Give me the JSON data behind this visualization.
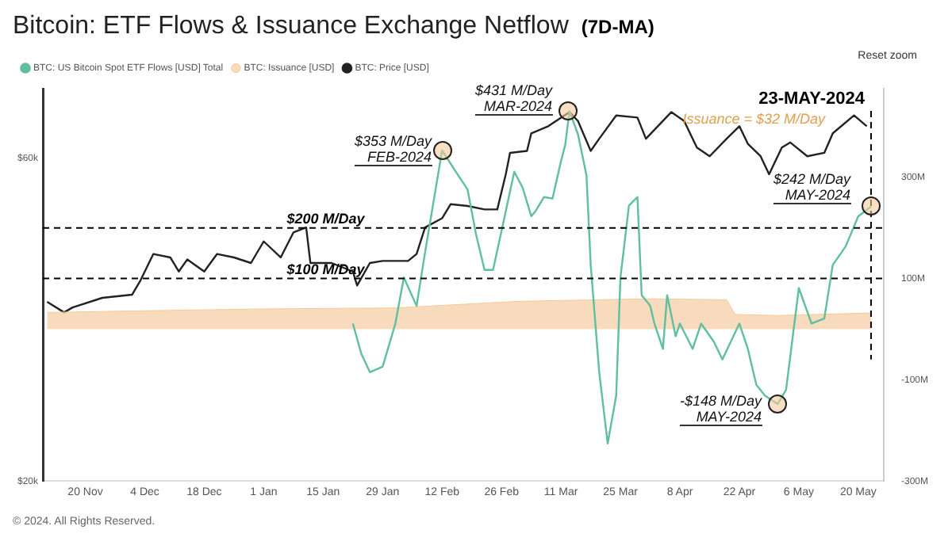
{
  "chart_data": {
    "type": "line",
    "title": "Bitcoin: ETF Flows & Issuance Exchange Netflow",
    "subtitle": "(7D-MA)",
    "xlim": [
      "2023-11-10",
      "2024-05-26"
    ],
    "xticks": [
      {
        "value": "2023-11-20",
        "label": "20 Nov"
      },
      {
        "value": "2023-12-04",
        "label": "4 Dec"
      },
      {
        "value": "2023-12-18",
        "label": "18 Dec"
      },
      {
        "value": "2024-01-01",
        "label": "1 Jan"
      },
      {
        "value": "2024-01-15",
        "label": "15 Jan"
      },
      {
        "value": "2024-01-29",
        "label": "29 Jan"
      },
      {
        "value": "2024-02-12",
        "label": "12 Feb"
      },
      {
        "value": "2024-02-26",
        "label": "26 Feb"
      },
      {
        "value": "2024-03-11",
        "label": "11 Mar"
      },
      {
        "value": "2024-03-25",
        "label": "25 Mar"
      },
      {
        "value": "2024-04-08",
        "label": "8 Apr"
      },
      {
        "value": "2024-04-22",
        "label": "22 Apr"
      },
      {
        "value": "2024-05-06",
        "label": "6 May"
      },
      {
        "value": "2024-05-20",
        "label": "20 May"
      }
    ],
    "log": "y",
    "ylim": [
      20000,
      76000
    ],
    "yticks": [
      {
        "value": 20000,
        "label": "$20k"
      },
      {
        "value": 60000,
        "label": "$60k"
      }
    ],
    "y2lim": [
      -300,
      475
    ],
    "y2ticks": [
      {
        "value": 300,
        "label": "300M"
      },
      {
        "value": 100,
        "label": "100M"
      },
      {
        "value": -100,
        "label": "-100M"
      },
      {
        "value": -300,
        "label": "-300M"
      }
    ],
    "grid": false,
    "legend": "top",
    "marker": "none",
    "series": [
      {
        "name": "BTC: US Bitcoin Spot ETF Flows [USD] Total",
        "color": "#5fbf9f",
        "axis": "y2",
        "x": [
          "2024-01-22",
          "2024-01-24",
          "2024-01-26",
          "2024-01-29",
          "2024-02-01",
          "2024-02-03",
          "2024-02-06",
          "2024-02-08",
          "2024-02-12",
          "2024-02-15",
          "2024-02-18",
          "2024-02-20",
          "2024-02-22",
          "2024-02-24",
          "2024-02-27",
          "2024-02-29",
          "2024-03-02",
          "2024-03-04",
          "2024-03-05",
          "2024-03-07",
          "2024-03-09",
          "2024-03-11",
          "2024-03-12",
          "2024-03-13",
          "2024-03-15",
          "2024-03-17",
          "2024-03-18",
          "2024-03-20",
          "2024-03-22",
          "2024-03-24",
          "2024-03-25",
          "2024-03-27",
          "2024-03-29",
          "2024-03-30",
          "2024-04-01",
          "2024-04-02",
          "2024-04-04",
          "2024-04-05",
          "2024-04-07",
          "2024-04-08",
          "2024-04-11",
          "2024-04-13",
          "2024-04-16",
          "2024-04-18",
          "2024-04-22",
          "2024-04-24",
          "2024-04-26",
          "2024-04-28",
          "2024-05-01",
          "2024-05-03",
          "2024-05-06",
          "2024-05-09",
          "2024-05-12",
          "2024-05-14",
          "2024-05-17",
          "2024-05-20",
          "2024-05-23"
        ],
        "values": [
          11,
          -49,
          -85,
          -74,
          11,
          102,
          46,
          152,
          353,
          314,
          276,
          187,
          117,
          117,
          233,
          311,
          279,
          223,
          233,
          261,
          258,
          332,
          364,
          431,
          385,
          304,
          127,
          -85,
          -226,
          -131,
          102,
          244,
          261,
          67,
          46,
          11,
          -39,
          67,
          -14,
          11,
          -39,
          11,
          -25,
          -60,
          11,
          -39,
          -110,
          -131,
          -148,
          -120,
          81,
          11,
          21,
          127,
          163,
          223,
          242
        ]
      },
      {
        "name": "BTC: Issuance [USD]",
        "color": "#f5c99b",
        "axis": "y2",
        "type": "area",
        "x": [
          "2023-11-11",
          "2023-12-01",
          "2024-01-01",
          "2024-02-01",
          "2024-03-01",
          "2024-04-01",
          "2024-04-19",
          "2024-04-21",
          "2024-05-01",
          "2024-05-23"
        ],
        "values": [
          33,
          36,
          40,
          42,
          55,
          60,
          58,
          29,
          27,
          32
        ]
      },
      {
        "name": "BTC: Price [USD]",
        "color": "#222222",
        "axis": "y",
        "x": [
          "2023-11-11",
          "2023-11-15",
          "2023-11-17",
          "2023-11-24",
          "2023-12-01",
          "2023-12-03",
          "2023-12-06",
          "2023-12-10",
          "2023-12-12",
          "2023-12-14",
          "2023-12-18",
          "2023-12-21",
          "2023-12-25",
          "2023-12-29",
          "2024-01-01",
          "2024-01-05",
          "2024-01-08",
          "2024-01-11",
          "2024-01-12",
          "2024-01-17",
          "2024-01-22",
          "2024-01-23",
          "2024-01-26",
          "2024-01-29",
          "2024-02-04",
          "2024-02-06",
          "2024-02-08",
          "2024-02-12",
          "2024-02-14",
          "2024-02-18",
          "2024-02-22",
          "2024-02-25",
          "2024-02-27",
          "2024-02-28",
          "2024-03-03",
          "2024-03-04",
          "2024-03-08",
          "2024-03-13",
          "2024-03-15",
          "2024-03-18",
          "2024-03-20",
          "2024-03-24",
          "2024-03-29",
          "2024-03-31",
          "2024-04-06",
          "2024-04-09",
          "2024-04-12",
          "2024-04-15",
          "2024-04-19",
          "2024-04-22",
          "2024-04-24",
          "2024-04-27",
          "2024-04-29",
          "2024-05-02",
          "2024-05-04",
          "2024-05-08",
          "2024-05-12",
          "2024-05-14",
          "2024-05-19",
          "2024-05-22"
        ],
        "values": [
          36800,
          35500,
          36100,
          37300,
          37700,
          39600,
          43300,
          42800,
          40800,
          42500,
          40800,
          43300,
          42800,
          42000,
          45200,
          42800,
          46600,
          47400,
          42000,
          42000,
          40800,
          38900,
          42000,
          42300,
          42300,
          43300,
          47400,
          48900,
          51300,
          51000,
          50400,
          50400,
          56800,
          61100,
          61500,
          65300,
          66900,
          70200,
          68100,
          61500,
          64100,
          69400,
          68900,
          64100,
          70200,
          68100,
          62200,
          60400,
          64100,
          66900,
          63000,
          60400,
          56800,
          62200,
          63300,
          60400,
          61100,
          65300,
          69400,
          66900
        ]
      }
    ],
    "ref_lines": [
      {
        "axis": "y2",
        "value": 200,
        "label": "$200 M/Day",
        "line_style": "dashed"
      },
      {
        "axis": "y2",
        "value": 100,
        "label": "$100 M/Day",
        "line_style": "dashed"
      },
      {
        "axis": "x",
        "value": "2024-05-23",
        "label": "23-MAY-2024",
        "line_style": "dashed"
      }
    ],
    "annotations": [
      "$353 M/Day\nFEB-2024",
      "$431 M/Day\nMAR-2024",
      "$242 M/Day\nMAY-2024",
      "-$148 M/Day\nMAY-2024",
      "Issuance = $32 M/Day",
      "Reset zoom",
      "© 2024. All Rights Reserved."
    ]
  }
}
